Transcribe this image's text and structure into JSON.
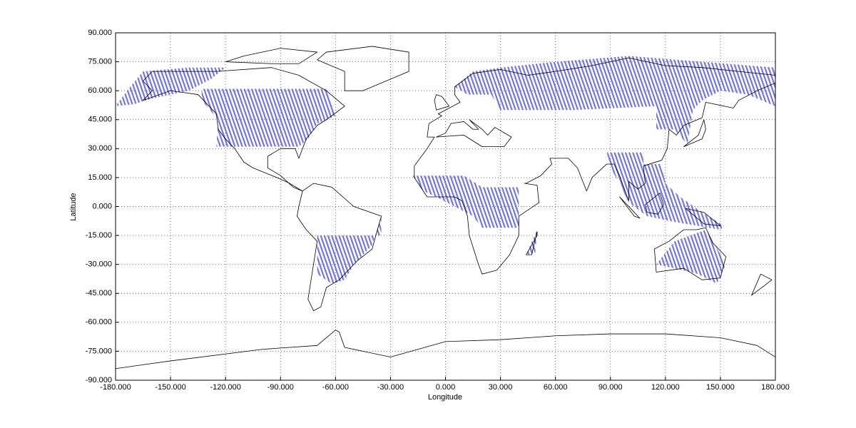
{
  "chart_data": {
    "type": "map",
    "xlabel": "Longitude",
    "ylabel": "Latitude",
    "xlim": [
      -180,
      180
    ],
    "ylim": [
      -90,
      90
    ],
    "xticks": [
      {
        "value": -180,
        "label": "-180.000"
      },
      {
        "value": -150,
        "label": "-150.000"
      },
      {
        "value": -120,
        "label": "-120.000"
      },
      {
        "value": -90,
        "label": "-90.000"
      },
      {
        "value": -60,
        "label": "-60.000"
      },
      {
        "value": -30,
        "label": "-30.000"
      },
      {
        "value": 0,
        "label": "0.000"
      },
      {
        "value": 30,
        "label": "30.000"
      },
      {
        "value": 60,
        "label": "60.000"
      },
      {
        "value": 90,
        "label": "90.000"
      },
      {
        "value": 120,
        "label": "120.000"
      },
      {
        "value": 150,
        "label": "150.000"
      },
      {
        "value": 180,
        "label": "180.000"
      }
    ],
    "yticks": [
      {
        "value": -90,
        "label": "-90.000"
      },
      {
        "value": -75,
        "label": "-75.000"
      },
      {
        "value": -60,
        "label": "-60.000"
      },
      {
        "value": -45,
        "label": "-45.000"
      },
      {
        "value": -30,
        "label": "-30.000"
      },
      {
        "value": -15,
        "label": "-15.000"
      },
      {
        "value": 0,
        "label": "0.000"
      },
      {
        "value": 15,
        "label": "15.000"
      },
      {
        "value": 30,
        "label": "30.000"
      },
      {
        "value": 45,
        "label": "45.000"
      },
      {
        "value": 60,
        "label": "60.000"
      },
      {
        "value": 75,
        "label": "75.000"
      },
      {
        "value": 90,
        "label": "90.000"
      }
    ],
    "grid": true
  }
}
